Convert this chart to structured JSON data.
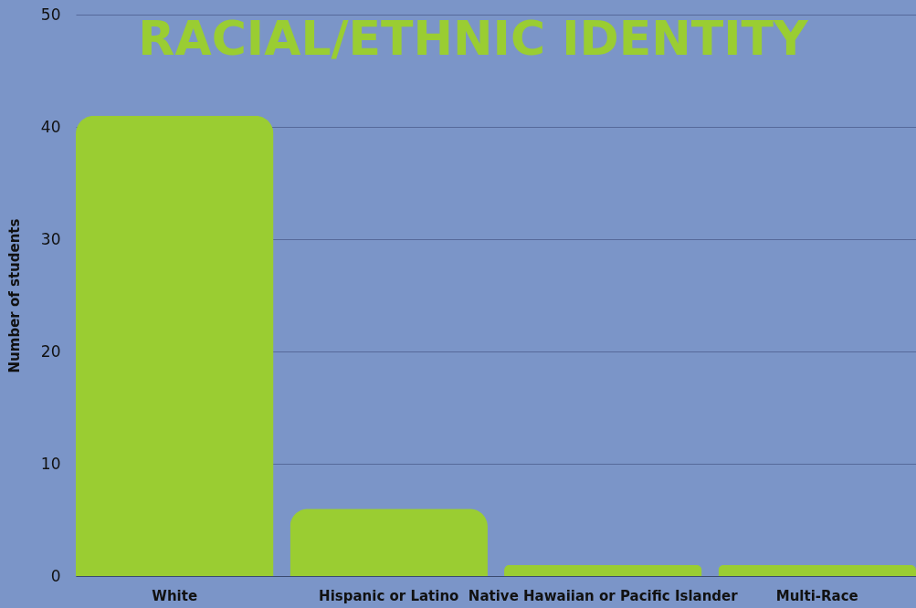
{
  "chart_data": {
    "type": "bar",
    "title": "RACIAL/ETHNIC IDENTITY",
    "ylabel": "Number of students",
    "categories": [
      "White",
      "Hispanic or Latino",
      "Native Hawaiian or Pacific Islander",
      "Multi-Race"
    ],
    "values": [
      41,
      6,
      1,
      1
    ],
    "color": "#9acd32",
    "ylim": [
      0,
      50
    ],
    "yticks": [
      0,
      10,
      20,
      30,
      40,
      50
    ],
    "grid": "y"
  }
}
